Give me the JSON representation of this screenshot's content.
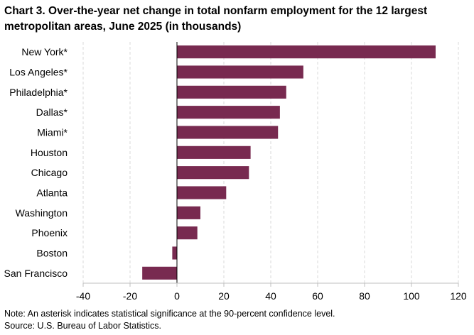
{
  "chart_data": {
    "type": "bar",
    "orientation": "horizontal",
    "title": "Chart 3. Over-the-year net change in total nonfarm employment for the 12 largest metropolitan areas, June 2025 (in thousands)",
    "categories": [
      "New York*",
      "Los Angeles*",
      "Philadelphia*",
      "Dallas*",
      "Miami*",
      "Houston",
      "Chicago",
      "Atlanta",
      "Washington",
      "Phoenix",
      "Boston",
      "San Francisco"
    ],
    "values": [
      110.3,
      53.9,
      46.6,
      43.9,
      43.1,
      31.4,
      30.7,
      21.0,
      10.0,
      8.7,
      -2.0,
      -14.8
    ],
    "xlim": [
      -40,
      120
    ],
    "xticks": [
      "-40",
      "-20",
      "0",
      "20",
      "40",
      "60",
      "80",
      "100",
      "120"
    ],
    "xtick_values": [
      -40,
      -20,
      0,
      20,
      40,
      60,
      80,
      100,
      120
    ],
    "grid": true,
    "bar_color": "#782a50",
    "xlabel": "",
    "ylabel": ""
  },
  "footer": {
    "note": "Note: An asterisk indicates statistical significance at the 90-percent confidence level.",
    "source": "Source: U.S. Bureau of Labor Statistics."
  }
}
